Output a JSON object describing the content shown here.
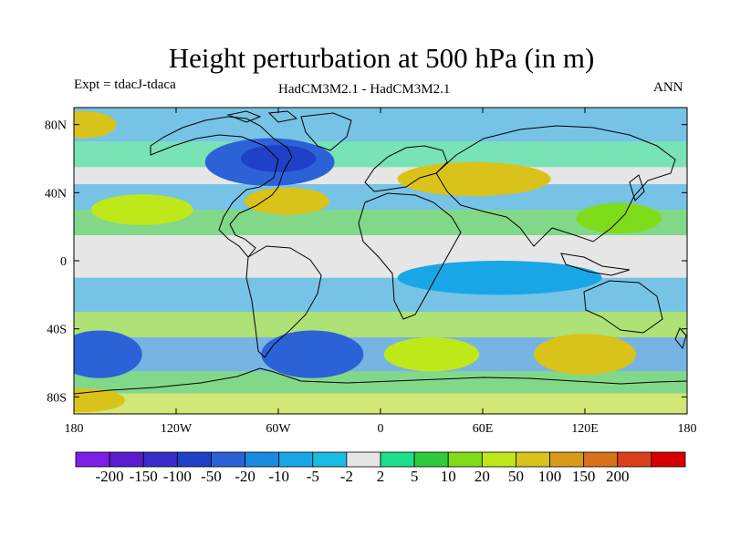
{
  "title": "Height perturbation at 500 hPa (in m)",
  "subtitle_left": "Expt = tdacJ-tdaca",
  "subtitle_center": "HadCM3M2.1 - HadCM3M2.1",
  "subtitle_right": "ANN",
  "map": {
    "projection": "cylindrical equidistant",
    "lon_range": [
      -180,
      180
    ],
    "lat_range": [
      -90,
      90
    ],
    "lat_ticks": [
      {
        "value": 80,
        "label": "80N"
      },
      {
        "value": 40,
        "label": "40N"
      },
      {
        "value": 0,
        "label": "0"
      },
      {
        "value": -40,
        "label": "40S"
      },
      {
        "value": -80,
        "label": "80S"
      }
    ],
    "lon_ticks": [
      {
        "value": -180,
        "label": "180"
      },
      {
        "value": -120,
        "label": "120W"
      },
      {
        "value": -60,
        "label": "60W"
      },
      {
        "value": 0,
        "label": "0"
      },
      {
        "value": 60,
        "label": "60E"
      },
      {
        "value": 120,
        "label": "120E"
      },
      {
        "value": 180,
        "label": "180"
      }
    ],
    "colors": {
      "neg_extreme": "#7e1fe8",
      "neg_3": "#5a1ccd",
      "neg_2": "#3a2cc8",
      "neg_1": "#2040c8",
      "neg_0": "#2b62d7",
      "neg_5": "#1a8ae0",
      "neg_10": "#19a6e6",
      "neg_20": "#19bde1",
      "neutral": "#e6e6e6",
      "pos_2": "#1ee08c",
      "pos_5": "#2ecc3c",
      "pos_10": "#7fdc1a",
      "pos_20": "#bfe81a",
      "pos_50": "#d9c21a",
      "pos_100": "#d99a1a",
      "pos_150": "#d9701a",
      "pos_200": "#d9401a",
      "pos_extreme": "#d60000"
    },
    "features": [
      {
        "name": "feature-low-north-america",
        "level": "neg_0",
        "lon": -65,
        "lat": 58,
        "rx": 38,
        "ry": 14
      },
      {
        "name": "feature-low-north-america-core",
        "level": "neg_1",
        "lon": -60,
        "lat": 60,
        "rx": 22,
        "ry": 8
      },
      {
        "name": "feature-high-north-atlantic",
        "level": "pos_50",
        "lon": -55,
        "lat": 35,
        "rx": 25,
        "ry": 8
      },
      {
        "name": "feature-high-north-pacific",
        "level": "pos_20",
        "lon": -140,
        "lat": 30,
        "rx": 30,
        "ry": 9
      },
      {
        "name": "feature-high-arctic-west",
        "level": "pos_50",
        "lon": -175,
        "lat": 80,
        "rx": 20,
        "ry": 8
      },
      {
        "name": "feature-high-eurasia",
        "level": "pos_50",
        "lon": 55,
        "lat": 48,
        "rx": 45,
        "ry": 10
      },
      {
        "name": "feature-high-east-asia",
        "level": "pos_10",
        "lon": 140,
        "lat": 25,
        "rx": 25,
        "ry": 9
      },
      {
        "name": "feature-low-south-atlantic",
        "level": "neg_0",
        "lon": -40,
        "lat": -55,
        "rx": 30,
        "ry": 14
      },
      {
        "name": "feature-low-south-pacific",
        "level": "neg_0",
        "lon": -165,
        "lat": -55,
        "rx": 25,
        "ry": 14
      },
      {
        "name": "feature-high-south-indian",
        "level": "pos_50",
        "lon": 120,
        "lat": -55,
        "rx": 30,
        "ry": 12
      },
      {
        "name": "feature-high-south-africa",
        "level": "pos_20",
        "lon": 30,
        "lat": -55,
        "rx": 28,
        "ry": 10
      },
      {
        "name": "feature-high-antarctic-west",
        "level": "pos_50",
        "lon": -175,
        "lat": -82,
        "rx": 25,
        "ry": 7
      },
      {
        "name": "feature-low-tropics-east",
        "level": "neg_10",
        "lon": 70,
        "lat": -10,
        "rx": 60,
        "ry": 10
      }
    ]
  },
  "colorbar": {
    "colors": [
      "#7e1fe8",
      "#5a1ccd",
      "#3a2cc8",
      "#2040c8",
      "#2b62d7",
      "#1a8ae0",
      "#19a6e6",
      "#19bde1",
      "#e6e6e6",
      "#1ee08c",
      "#2ecc3c",
      "#7fdc1a",
      "#bfe81a",
      "#d9c21a",
      "#d99a1a",
      "#d9701a",
      "#d9401a",
      "#d60000"
    ],
    "labels": [
      "-200",
      "-150",
      "-100",
      "-50",
      "-20",
      "-10",
      "-5",
      "-2",
      "2",
      "5",
      "10",
      "20",
      "50",
      "100",
      "150",
      "200"
    ]
  }
}
